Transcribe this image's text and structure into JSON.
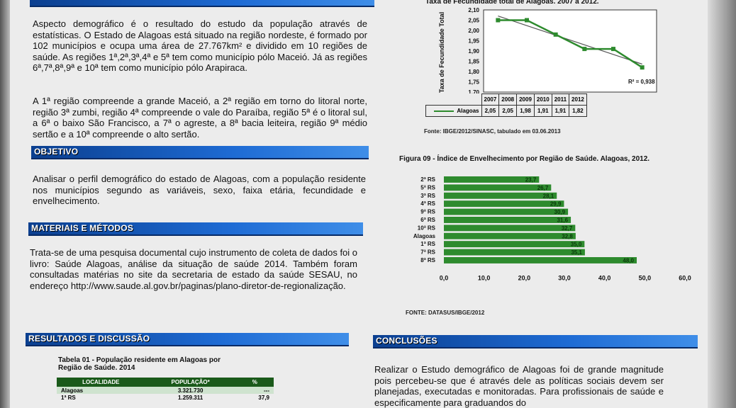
{
  "intro": {
    "p1": "Aspecto demográfico é o resultado do estudo da população através de estatísticas. O Estado de Alagoas está situado na região nordeste, é formado por 102 municípios e ocupa uma área de 27.767km² e dividido em 10 regiões de saúde. As regiões 1ª,2ª,3ª,4ª e 5ª tem como município pólo Maceió. Já as regiões 6ª,7ª,8ª,9ª e 10ª tem como município pólo Arapiraca.",
    "p2": "A 1ª região compreende a grande Maceió, a 2ª região em torno do litoral norte, região 3ª zumbi, região 4ª compreende o vale do Paraíba, região 5ª é o litoral sul, a 6ª o baixo São Francisco, a 7ª o agreste, a 8ª bacia leiteira, região 9ª médio sertão e a 10ª compreende o alto sertão."
  },
  "objetivo": {
    "heading": "OBJETIVO",
    "text": "Analisar o perfil demográfico do estado de Alagoas, com a população residente nos municípios segundo as variáveis, sexo, faixa etária, fecundidade e envelhecimento."
  },
  "metodos": {
    "heading": "MATERIAIS E MÉTODOS",
    "text": "Trata-se de uma pesquisa documental cujo instrumento de coleta de dados foi o livro: Saúde Alagoas, análise da situação de saúde 2014. Também foram consultadas matérias no site da secretaria de estado da saúde SESAU, no endereço http://www.saude.al.gov.br/paginas/plano-diretor-de-regionalização."
  },
  "resultados": {
    "heading": "RESULTADOS E DISCUSSÃO",
    "table_title": "Tabela 01 - População residente em Alagoas por Região de Saúde. 2014",
    "table_headers": [
      "LOCALIDADE",
      "POPULAÇÃO*",
      "%"
    ],
    "table_rows": [
      [
        "Alagoas",
        "3.321.730",
        "---"
      ],
      [
        "1ª RS",
        "1.259.311",
        "37,9"
      ]
    ]
  },
  "conclusoes": {
    "heading": "CONCLUSÕES",
    "text": "Realizar o Estudo demográfico de Alagoas foi de grande magnitude pois percebeu-se que é através dele as políticas sociais devem ser planejadas, executadas e monitoradas. Para profissionais de saúde e especificamente para graduandos do"
  },
  "fig_fecundidade": {
    "title_fragment": "Taxa de Fecundidade total de Alagoas. 2007 a 2012.",
    "source": "Fonte: IBGE/2012/SINASC, tabulado em 03.06.2013",
    "r2": "R² = 0,938"
  },
  "fig_envelhecimento": {
    "title": "Figura 09 - Índice de Envelhecimento por Região de Saúde. Alagoas, 2012.",
    "source": "FONTE: DATASUS/IBGE/2012"
  },
  "colors": {
    "bar_blue": "#1e6bd4",
    "chart_green": "#2e8b2e",
    "table_green": "#1a5a1a"
  },
  "chart_data": [
    {
      "type": "line",
      "title": "Taxa de Fecundidade total de Alagoas. 2007 a 2012.",
      "ylabel": "Taxa de Fecundidade Total",
      "x": [
        "2007",
        "2008",
        "2009",
        "2010",
        "2011",
        "2012"
      ],
      "series": [
        {
          "name": "Alagoas",
          "values": [
            2.05,
            2.05,
            1.98,
            1.91,
            1.91,
            1.82
          ]
        }
      ],
      "yticks": [
        "2,10",
        "2,05",
        "2,00",
        "1,95",
        "1,90",
        "1,85",
        "1,80",
        "1,75",
        "1,70"
      ],
      "ylim": [
        1.7,
        2.1
      ],
      "trendline": true
    },
    {
      "type": "bar",
      "orientation": "horizontal",
      "title": "Figura 09 - Índice de Envelhecimento por Região de Saúde. Alagoas, 2012.",
      "categories": [
        "2ª RS",
        "5ª RS",
        "3ª RS",
        "4ª RS",
        "9ª RS",
        "6ª RS",
        "10ª RS",
        "Alagoas",
        "1ª RS",
        "7ª RS",
        "8ª RS"
      ],
      "values": [
        23.7,
        26.7,
        28.1,
        29.9,
        30.9,
        31.6,
        32.7,
        32.8,
        35.0,
        35.1,
        48.0
      ],
      "labels": [
        "23,7",
        "26,7",
        "28,1",
        "29,9",
        "30,9",
        "31,6",
        "32,7",
        "32,8",
        "35,0",
        "35,1",
        "48,0"
      ],
      "xticks": [
        "0,0",
        "10,0",
        "20,0",
        "30,0",
        "40,0",
        "50,0",
        "60,0"
      ],
      "xlim": [
        0,
        60
      ]
    }
  ]
}
